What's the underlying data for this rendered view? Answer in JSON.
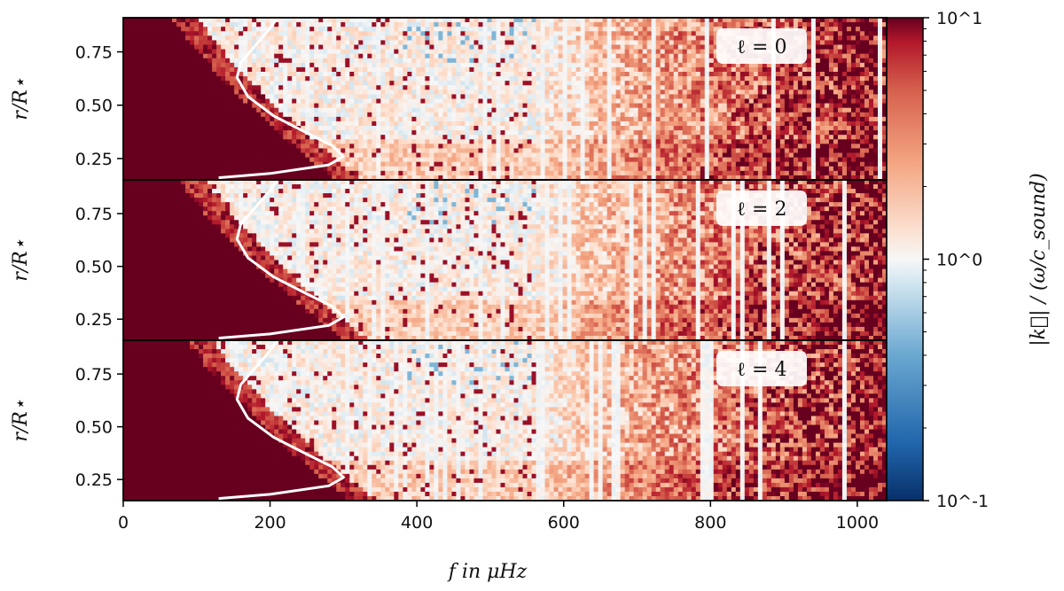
{
  "chart_data": {
    "type": "heatmap",
    "x_axis": {
      "label": "f in μHz",
      "range": [
        0,
        1040
      ],
      "ticks": [
        0,
        200,
        400,
        600,
        800,
        1000
      ],
      "tick_labels": [
        "0",
        "200",
        "400",
        "600",
        "800",
        "1000"
      ]
    },
    "y_axis": {
      "label": "r/R⋆",
      "range": [
        0.15,
        0.91
      ],
      "ticks": [
        0.25,
        0.5,
        0.75
      ],
      "tick_labels": [
        "0.25",
        "0.50",
        "0.75"
      ]
    },
    "colorbar": {
      "label": "|k⃗| / (ω/c_sound)",
      "scale": "log",
      "range": [
        0.1,
        10
      ],
      "tick_labels": [
        "10^-1",
        "10^0",
        "10^1"
      ],
      "colormap": "RdBu_r",
      "colors": {
        "low": "#08306b",
        "mid": "#f7f7f7",
        "high": "#67001f"
      }
    },
    "panels": [
      {
        "legend": "ℓ = 0",
        "degree": 0
      },
      {
        "legend": "ℓ = 2",
        "degree": 2
      },
      {
        "legend": "ℓ = 4",
        "degree": 4
      }
    ],
    "overlay_curve": {
      "color": "#ffffff",
      "points": [
        {
          "f": 130,
          "r": 0.16
        },
        {
          "f": 200,
          "r": 0.18
        },
        {
          "f": 280,
          "r": 0.22
        },
        {
          "f": 300,
          "r": 0.26
        },
        {
          "f": 285,
          "r": 0.31
        },
        {
          "f": 250,
          "r": 0.37
        },
        {
          "f": 205,
          "r": 0.45
        },
        {
          "f": 170,
          "r": 0.54
        },
        {
          "f": 155,
          "r": 0.63
        },
        {
          "f": 160,
          "r": 0.7
        },
        {
          "f": 180,
          "r": 0.78
        },
        {
          "f": 200,
          "r": 0.86
        },
        {
          "f": 210,
          "r": 0.91
        }
      ]
    }
  }
}
